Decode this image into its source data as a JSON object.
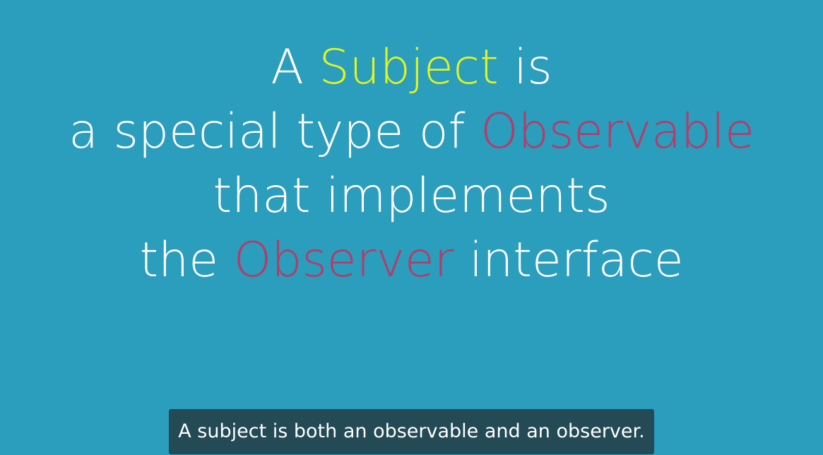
{
  "colors": {
    "background": "#2b9dbd",
    "text": "#ffffff",
    "subject_highlight": "#e3f51f",
    "observable_highlight": "#b83a67",
    "caption_background": "#234a55"
  },
  "slide": {
    "line1": {
      "a": "A",
      "subject": "Subject",
      "is": "is"
    },
    "line2": {
      "prefix": "a special type of",
      "observable": "Observable"
    },
    "line3": {
      "text": "that implements"
    },
    "line4": {
      "the": "the",
      "observer": "Observer",
      "suffix": "interface"
    }
  },
  "caption": {
    "text": "A subject is both an observable and an observer."
  }
}
